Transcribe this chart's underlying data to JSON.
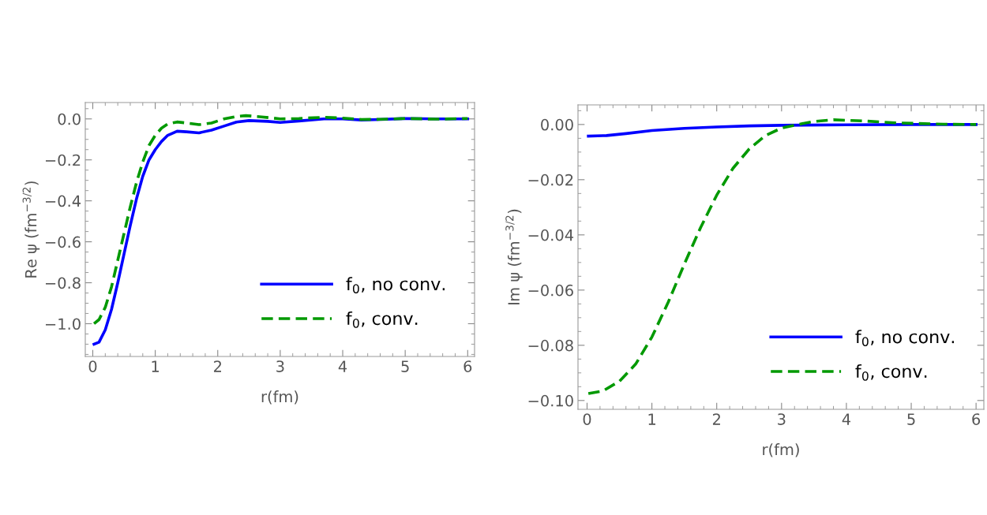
{
  "chart_data": [
    {
      "type": "line",
      "xlabel": "r(fm)",
      "ylabel": "Re ψ (fm$^{−3/2}$)",
      "xlim": [
        -0.12,
        6.11
      ],
      "xticks": [
        0,
        1,
        2,
        3,
        4,
        5,
        6
      ],
      "ylim": [
        -1.16,
        0.08
      ],
      "yticks": [
        {
          "value": 0,
          "label": "0.0"
        },
        {
          "value": -0.2,
          "label": "−0.2"
        },
        {
          "value": -0.4,
          "label": "−0.4"
        },
        {
          "value": -0.6,
          "label": "−0.6"
        },
        {
          "value": -0.8,
          "label": "−0.8"
        },
        {
          "value": -1.0,
          "label": "−1.0"
        }
      ],
      "grid": false,
      "legend": "bottom right",
      "series": [
        {
          "name": "f$_{0}$, no conv.",
          "color": "#0000ff",
          "line_style": "solid",
          "x": [
            0.02,
            0.1,
            0.2,
            0.3,
            0.4,
            0.5,
            0.6,
            0.7,
            0.8,
            0.9,
            1.0,
            1.1,
            1.2,
            1.35,
            1.5,
            1.7,
            1.9,
            2.1,
            2.3,
            2.5,
            2.8,
            3.0,
            3.3,
            3.7,
            4.0,
            4.3,
            4.6,
            5.0,
            5.5,
            6.0
          ],
          "values": [
            -1.1,
            -1.09,
            -1.03,
            -0.93,
            -0.8,
            -0.66,
            -0.52,
            -0.39,
            -0.28,
            -0.2,
            -0.15,
            -0.11,
            -0.08,
            -0.06,
            -0.063,
            -0.068,
            -0.055,
            -0.035,
            -0.015,
            -0.008,
            -0.012,
            -0.017,
            -0.01,
            0.0,
            0.0,
            -0.005,
            -0.003,
            0.002,
            0.0,
            0.0
          ]
        },
        {
          "name": "f$_{0}$, conv.",
          "color": "#009900",
          "line_style": "dashed",
          "x": [
            0.02,
            0.1,
            0.2,
            0.3,
            0.4,
            0.5,
            0.6,
            0.7,
            0.8,
            0.9,
            1.0,
            1.1,
            1.2,
            1.35,
            1.5,
            1.7,
            1.9,
            2.1,
            2.3,
            2.45,
            2.7,
            3.0,
            3.3,
            3.7,
            4.0,
            4.3,
            4.6,
            5.0,
            5.5,
            6.0
          ],
          "values": [
            -1.0,
            -0.98,
            -0.92,
            -0.82,
            -0.69,
            -0.56,
            -0.43,
            -0.31,
            -0.21,
            -0.13,
            -0.08,
            -0.045,
            -0.025,
            -0.015,
            -0.02,
            -0.028,
            -0.02,
            0.0,
            0.012,
            0.016,
            0.01,
            0.0,
            0.002,
            0.008,
            0.004,
            -0.003,
            -0.002,
            0.002,
            -0.001,
            0.002
          ]
        }
      ]
    },
    {
      "type": "line",
      "xlabel": "r(fm)",
      "ylabel": "Im ψ (fm$^{−3/2}$)",
      "xlim": [
        -0.14,
        6.12
      ],
      "xticks": [
        0,
        1,
        2,
        3,
        4,
        5,
        6
      ],
      "ylim": [
        -0.1032,
        0.0071
      ],
      "yticks": [
        {
          "value": 0,
          "label": "0.00"
        },
        {
          "value": -0.02,
          "label": "−0.02"
        },
        {
          "value": -0.04,
          "label": "−0.04"
        },
        {
          "value": -0.06,
          "label": "−0.06"
        },
        {
          "value": -0.08,
          "label": "−0.08"
        },
        {
          "value": -0.1,
          "label": "−0.10"
        }
      ],
      "grid": false,
      "legend": "bottom right",
      "series": [
        {
          "name": "f$_{0}$, no conv.",
          "color": "#0000ff",
          "line_style": "solid",
          "x": [
            0.02,
            0.3,
            0.6,
            1.0,
            1.5,
            2.0,
            2.5,
            3.0,
            4.0,
            5.0,
            6.0
          ],
          "values": [
            -0.0042,
            -0.004,
            -0.0033,
            -0.0022,
            -0.0014,
            -0.0009,
            -0.0005,
            -0.0003,
            -0.0001,
            0.0,
            0.0
          ]
        },
        {
          "name": "f$_{0}$, conv.",
          "color": "#009900",
          "line_style": "dashed",
          "x": [
            0.02,
            0.25,
            0.5,
            0.75,
            1.0,
            1.25,
            1.5,
            1.75,
            2.0,
            2.25,
            2.5,
            2.75,
            3.0,
            3.25,
            3.5,
            3.8,
            4.25,
            4.75,
            5.5,
            6.0
          ],
          "values": [
            -0.0975,
            -0.0965,
            -0.093,
            -0.0868,
            -0.077,
            -0.0645,
            -0.0506,
            -0.0374,
            -0.0256,
            -0.0159,
            -0.0089,
            -0.004,
            -0.0013,
            0.0,
            0.0011,
            0.0017,
            0.0013,
            0.0006,
            0.0001,
            0.0
          ]
        }
      ]
    }
  ]
}
